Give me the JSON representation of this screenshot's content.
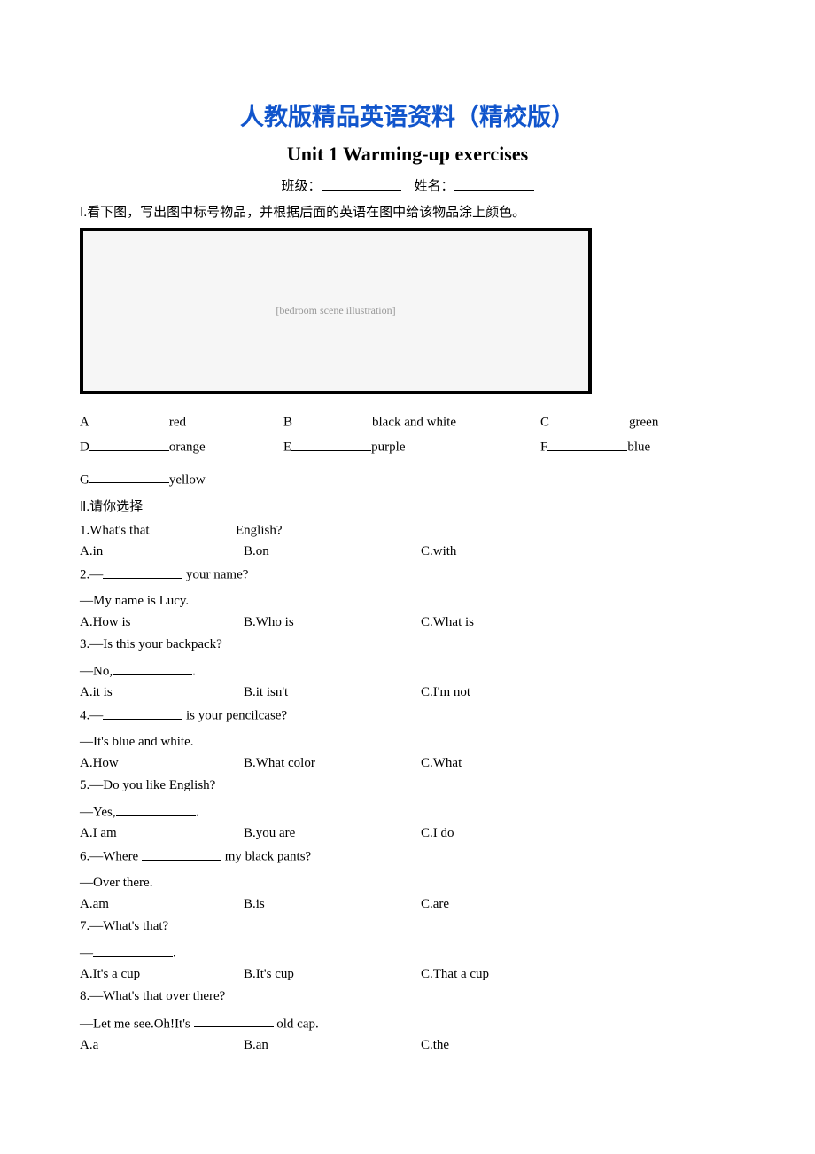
{
  "heading1": "人教版精品英语资料（精校版）",
  "heading2": "Unit 1 Warming-up exercises",
  "class_label": "班级：",
  "name_label": "姓名：",
  "section1": {
    "title": "Ⅰ.看下图，写出图中标号物品，并根据后面的英语在图中给该物品涂上颜色。",
    "image_alt": "[bedroom scene illustration]",
    "items": [
      {
        "letter": "A",
        "color": "red"
      },
      {
        "letter": "B",
        "color": "black and white"
      },
      {
        "letter": "C",
        "color": "green"
      },
      {
        "letter": "D",
        "color": "orange"
      },
      {
        "letter": "E",
        "color": "purple"
      },
      {
        "letter": "F",
        "color": "blue"
      },
      {
        "letter": "G",
        "color": "yellow"
      }
    ]
  },
  "section2": {
    "title": "Ⅱ.请你选择",
    "questions": [
      {
        "stem_before": "1.What's that ",
        "stem_after": " English?",
        "followup": "",
        "opts": {
          "a": "A.in",
          "b": "B.on",
          "c": "C.with"
        }
      },
      {
        "stem_before": "2.—",
        "stem_after": " your name?",
        "followup": "—My name is Lucy.",
        "opts": {
          "a": "A.How is",
          "b": "B.Who is",
          "c": "C.What is"
        }
      },
      {
        "stem_before": "3.—Is this your backpack?",
        "stem_after": "",
        "followup_before": "—No,",
        "followup_after": ".",
        "opts": {
          "a": "A.it is",
          "b": "B.it isn't",
          "c": "C.I'm not"
        }
      },
      {
        "stem_before": "4.—",
        "stem_after": " is your pencilcase?",
        "followup": "—It's blue and white.",
        "opts": {
          "a": "A.How",
          "b": "B.What color",
          "c": "C.What"
        }
      },
      {
        "stem_before": "5.—Do you like English?",
        "stem_after": "",
        "followup_before": "—Yes,",
        "followup_after": ".",
        "opts": {
          "a": "A.I am",
          "b": "B.you are",
          "c": "C.I do"
        }
      },
      {
        "stem_before": "6.—Where ",
        "stem_after": " my black pants?",
        "followup": "—Over there.",
        "opts": {
          "a": "A.am",
          "b": "B.is",
          "c": "C.are"
        }
      },
      {
        "stem_before": "7.—What's that?",
        "stem_after": "",
        "followup_before": "—",
        "followup_after": ".",
        "opts": {
          "a": "A.It's a cup",
          "b": "B.It's cup",
          "c": "C.That a cup"
        }
      },
      {
        "stem_before": "8.—What's that over there?",
        "stem_after": "",
        "followup_before": "—Let me see.Oh!It's ",
        "followup_after": " old cap.",
        "opts": {
          "a": "A.a",
          "b": "B.an",
          "c": "C.the"
        }
      }
    ]
  }
}
